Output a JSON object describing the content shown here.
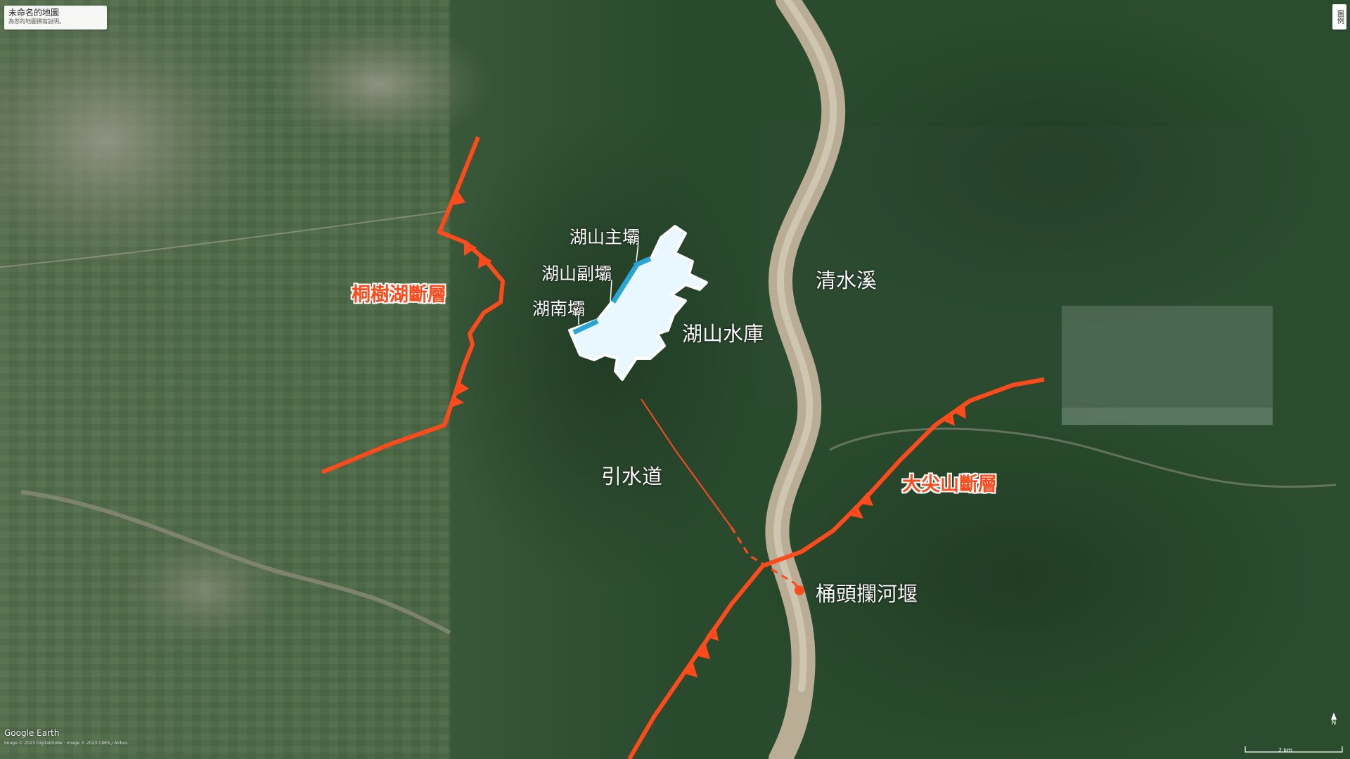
{
  "map": {
    "title": "未命名的地圖",
    "subtitle": "為您的地圖撰寫說明。",
    "legend_button": "圖例",
    "provider": "Google Earth",
    "credit": "Image © 2023 DigitalGlobe · Image © 2023 CNES / Airbus",
    "scale": "2 km",
    "north": "N"
  },
  "labels": {
    "tongshuhu_fault": "桐樹湖斷層",
    "dajianshan_fault": "大尖山斷層",
    "hushan_main_dam": "湖山主壩",
    "hushan_aux_dam": "湖山副壩",
    "hunan_dam": "湖南壩",
    "hushan_reservoir": "湖山水庫",
    "qingshui_river": "清水溪",
    "diversion_channel": "引水道",
    "tongtou_weir": "桶頭攔河堰"
  },
  "colors": {
    "fault": "#ff4a1c",
    "reservoir": "#e9f8ff",
    "dam": "#2aa6d6",
    "forest": "#264a2b",
    "farmland": "#56704a",
    "river": "#b9ad95"
  },
  "icons": {
    "fault_teeth": "triangle",
    "weir_marker": "dot"
  }
}
